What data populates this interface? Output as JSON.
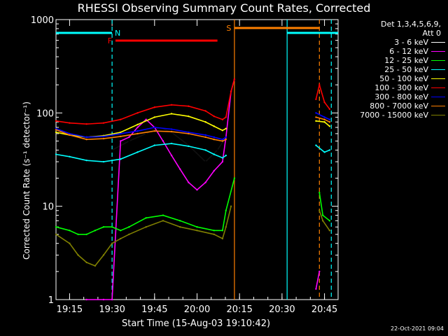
{
  "chart_data": {
    "type": "line",
    "title": "RHESSI Observing Summary Count Rates, Corrected",
    "xlabel": "Start Time (15-Aug-03 19:10:42)",
    "ylabel": "Corrected Count Rate (s⁻¹ detector⁻¹)",
    "yscale": "log",
    "ylim": [
      1,
      1000
    ],
    "xlim_minutes": [
      19.17,
      20.83
    ],
    "x_ticks": [
      "19:15",
      "19:30",
      "19:45",
      "20:00",
      "20:15",
      "20:30",
      "20:45"
    ],
    "y_ticks": [
      "1",
      "10",
      "100",
      "1000"
    ],
    "legend_header": [
      "Det 1,3,4,5,6,9,",
      "Att 0"
    ],
    "series": [
      {
        "name": "3 - 6 keV",
        "color": "#000000",
        "x": [
          19.5,
          19.6,
          19.7,
          19.78,
          19.85,
          19.95,
          20.05,
          20.12,
          20.17
        ],
        "y": [
          40,
          50,
          60,
          70,
          62,
          45,
          30,
          40,
          55
        ]
      },
      {
        "name": "6 - 12 keV",
        "color": "#ff00ff",
        "x": [
          19.35,
          19.45,
          19.5,
          19.55,
          19.6,
          19.65,
          19.7,
          19.75,
          19.8,
          19.85,
          19.9,
          19.95,
          20.0,
          20.05,
          20.1,
          20.15,
          20.17,
          20.2,
          20.22,
          20.7,
          20.72
        ],
        "y": [
          1,
          1,
          1,
          50,
          55,
          70,
          85,
          70,
          50,
          35,
          25,
          18,
          15,
          18,
          24,
          30,
          55,
          170,
          230,
          1.3,
          2
        ]
      },
      {
        "name": "12 - 25 keV",
        "color": "#00ff00",
        "x": [
          19.17,
          19.25,
          19.3,
          19.35,
          19.4,
          19.45,
          19.5,
          19.55,
          19.6,
          19.7,
          19.8,
          19.9,
          20.0,
          20.1,
          20.15,
          20.17,
          20.22,
          20.72,
          20.74,
          20.78
        ],
        "y": [
          6,
          5.5,
          5,
          5,
          5.5,
          6,
          6,
          5.5,
          6,
          7.5,
          8,
          7,
          6,
          5.5,
          5.5,
          9,
          20,
          14,
          8,
          7
        ]
      },
      {
        "name": "25 - 50 keV",
        "color": "#00ffff",
        "x": [
          19.17,
          19.25,
          19.35,
          19.45,
          19.55,
          19.65,
          19.75,
          19.85,
          19.95,
          20.05,
          20.1,
          20.15,
          20.17,
          20.7,
          20.75,
          20.78
        ],
        "y": [
          36,
          34,
          31,
          30,
          32,
          38,
          45,
          47,
          44,
          40,
          36,
          33,
          35,
          45,
          38,
          40
        ]
      },
      {
        "name": "50 - 100 keV",
        "color": "#ffff00",
        "x": [
          19.17,
          19.25,
          19.35,
          19.45,
          19.55,
          19.65,
          19.75,
          19.85,
          19.95,
          20.05,
          20.1,
          20.15,
          20.17,
          20.7,
          20.75,
          20.78
        ],
        "y": [
          62,
          58,
          55,
          57,
          62,
          75,
          90,
          98,
          92,
          80,
          72,
          65,
          68,
          82,
          80,
          72
        ]
      },
      {
        "name": "100 - 300 keV",
        "color": "#ff0000",
        "x": [
          19.17,
          19.25,
          19.35,
          19.45,
          19.55,
          19.65,
          19.75,
          19.85,
          19.95,
          20.05,
          20.1,
          20.15,
          20.17,
          20.2,
          20.22,
          20.7,
          20.72,
          20.75,
          20.78
        ],
        "y": [
          82,
          78,
          76,
          78,
          85,
          100,
          115,
          122,
          118,
          105,
          92,
          85,
          90,
          170,
          230,
          140,
          200,
          130,
          110
        ]
      },
      {
        "name": "300 - 800 keV",
        "color": "#0000ff",
        "x": [
          19.17,
          19.25,
          19.35,
          19.45,
          19.55,
          19.65,
          19.75,
          19.85,
          19.95,
          20.05,
          20.1,
          20.15,
          20.17,
          20.7,
          20.75,
          20.78
        ],
        "y": [
          68,
          60,
          55,
          56,
          60,
          64,
          70,
          67,
          62,
          58,
          55,
          52,
          55,
          100,
          90,
          85
        ]
      },
      {
        "name": "800 - 7000 keV",
        "color": "#ff8000",
        "x": [
          19.17,
          19.25,
          19.35,
          19.45,
          19.55,
          19.65,
          19.75,
          19.85,
          19.95,
          20.05,
          20.1,
          20.15,
          20.17,
          20.7,
          20.75,
          20.78
        ],
        "y": [
          66,
          58,
          52,
          53,
          56,
          60,
          64,
          63,
          60,
          55,
          52,
          50,
          52,
          90,
          85,
          80
        ]
      },
      {
        "name": "7000 - 15000 keV",
        "color": "#808000",
        "x": [
          19.17,
          19.25,
          19.3,
          19.35,
          19.4,
          19.45,
          19.5,
          19.55,
          19.6,
          19.7,
          19.8,
          19.9,
          20.0,
          20.1,
          20.15,
          20.17,
          20.2,
          20.72,
          20.74,
          20.78
        ],
        "y": [
          5,
          4,
          3,
          2.5,
          2.3,
          3,
          4,
          4.5,
          5,
          6,
          7,
          6,
          5.5,
          5,
          4.5,
          6,
          10,
          9,
          7,
          5.5
        ]
      }
    ],
    "flags": [
      {
        "label": "N",
        "color": "#00ffff",
        "segments": [
          [
            19.17,
            19.5
          ],
          [
            20.53,
            20.83
          ]
        ]
      },
      {
        "label": "F",
        "color": "#ff0000",
        "segments": [
          [
            19.52,
            20.12
          ]
        ]
      },
      {
        "label": "S",
        "color": "#ff8000",
        "segments": [
          [
            20.22,
            20.72
          ]
        ]
      }
    ],
    "vertical_markers": [
      {
        "x": 19.5,
        "color": "#00ffff",
        "style": "dashed"
      },
      {
        "x": 20.22,
        "color": "#ff8000",
        "style": "solid"
      },
      {
        "x": 20.53,
        "color": "#00ffff",
        "style": "solid"
      },
      {
        "x": 20.72,
        "color": "#ff8000",
        "style": "dashed"
      },
      {
        "x": 20.79,
        "color": "#00ffff",
        "style": "dashed"
      }
    ]
  },
  "footer_date": "22-Oct-2021 09:04"
}
